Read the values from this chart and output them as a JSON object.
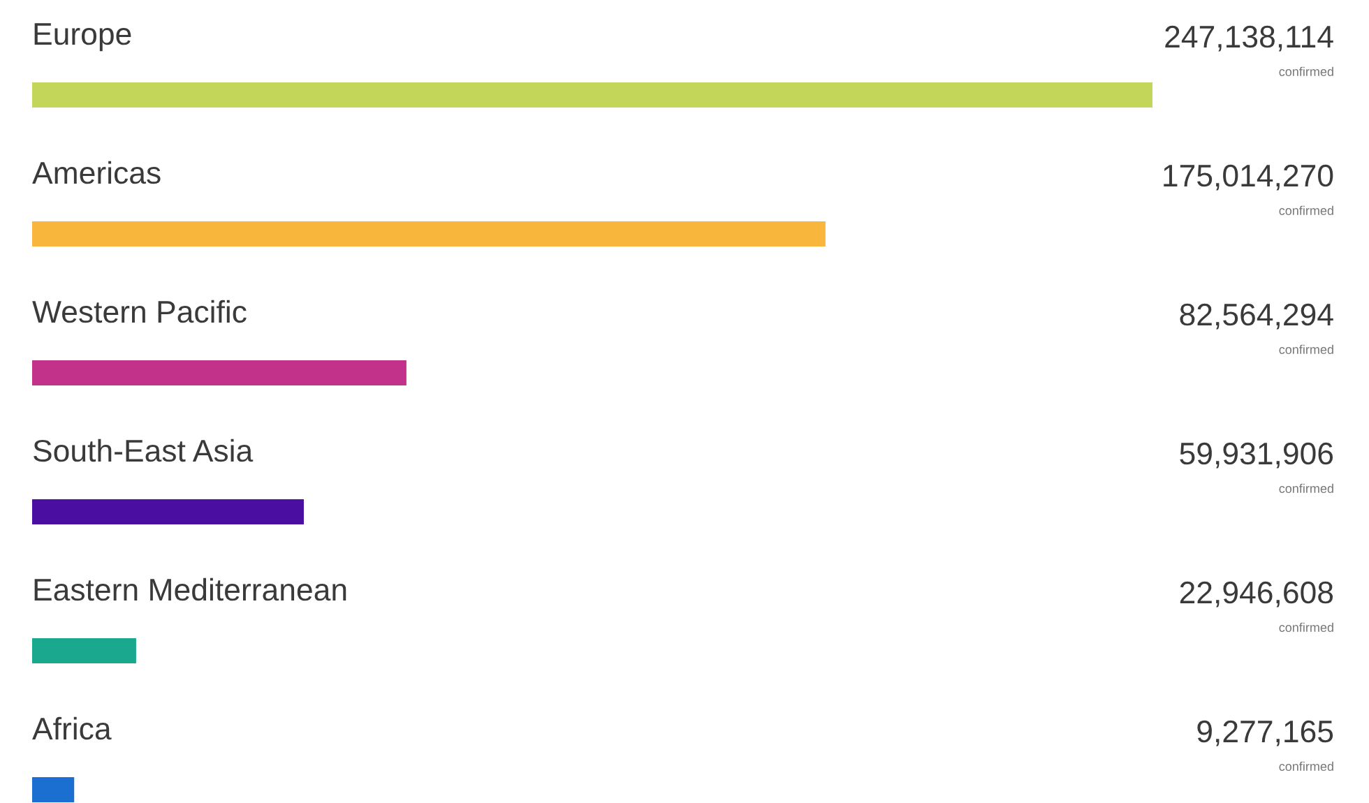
{
  "chart_data": {
    "type": "bar",
    "orientation": "horizontal",
    "categories": [
      "Europe",
      "Americas",
      "Western Pacific",
      "South-East Asia",
      "Eastern Mediterranean",
      "Africa"
    ],
    "values": [
      247138114,
      175014270,
      82564294,
      59931906,
      22946608,
      9277165
    ],
    "colors": [
      "#c3d65a",
      "#f8b73c",
      "#c2318a",
      "#4a0fa0",
      "#1aa88f",
      "#1b6fd1"
    ],
    "value_labels": [
      "247,138,114",
      "175,014,270",
      "82,564,294",
      "59,931,906",
      "22,946,608",
      "9,277,165"
    ],
    "annotations": [
      "confirmed",
      "confirmed",
      "confirmed",
      "confirmed",
      "confirmed",
      "confirmed"
    ]
  }
}
